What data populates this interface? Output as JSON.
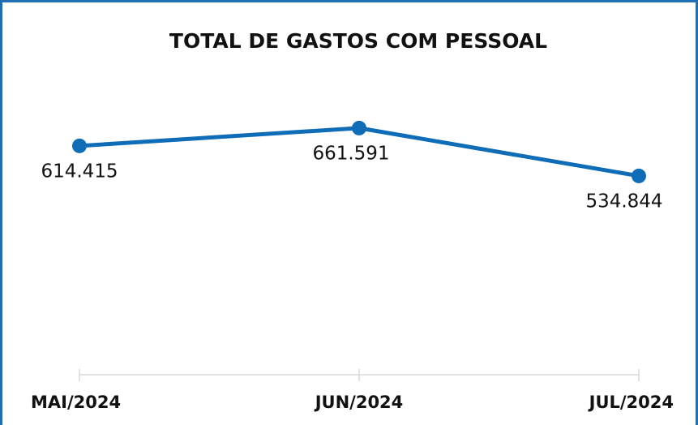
{
  "chart_data": {
    "type": "line",
    "title": "TOTAL DE GASTOS COM PESSOAL",
    "categories": [
      "MAI/2024",
      "JUN/2024",
      "JUL/2024"
    ],
    "series": [
      {
        "color": "#0f6cb6",
        "values": [
          614415,
          661591,
          534844
        ],
        "value_labels": [
          "614.415",
          "661.591",
          "534.844"
        ]
      }
    ],
    "ylim": [
      0,
      700000
    ]
  }
}
